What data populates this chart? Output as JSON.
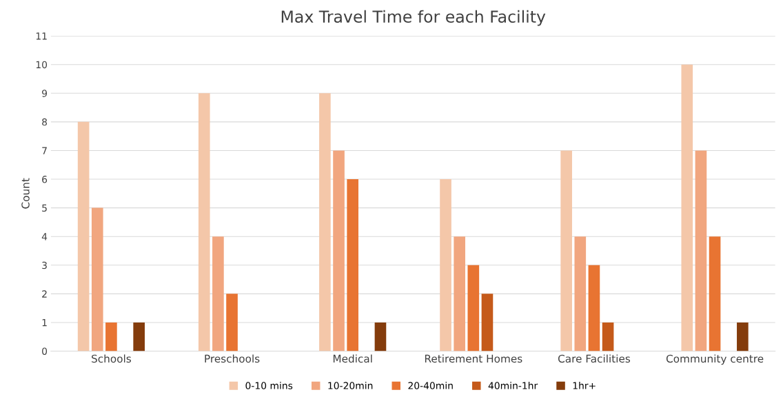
{
  "chart_data": {
    "type": "bar",
    "title": "Max Travel Time for each Facility",
    "ylabel": "Count",
    "categories": [
      "Schools",
      "Preschools",
      "Medical",
      "Retirement Homes",
      "Care Facilities",
      "Community centre"
    ],
    "series": [
      {
        "name": "0-10 mins",
        "color": "#f4c7a9",
        "values": [
          8,
          9,
          9,
          6,
          7,
          10
        ]
      },
      {
        "name": "10-20min",
        "color": "#f1a67f",
        "values": [
          5,
          4,
          7,
          4,
          4,
          7
        ]
      },
      {
        "name": "20-40min",
        "color": "#e87432",
        "values": [
          1,
          2,
          6,
          3,
          3,
          4
        ]
      },
      {
        "name": "40min-1hr",
        "color": "#c55a1a",
        "values": [
          0,
          0,
          0,
          2,
          1,
          0
        ]
      },
      {
        "name": "1hr+",
        "color": "#843c0c",
        "values": [
          1,
          0,
          1,
          0,
          0,
          1
        ]
      }
    ],
    "ylim": [
      0,
      11
    ],
    "yticks": [
      0,
      1,
      2,
      3,
      4,
      5,
      6,
      7,
      8,
      9,
      10,
      11
    ],
    "grid": "y",
    "legend": "bottom"
  }
}
